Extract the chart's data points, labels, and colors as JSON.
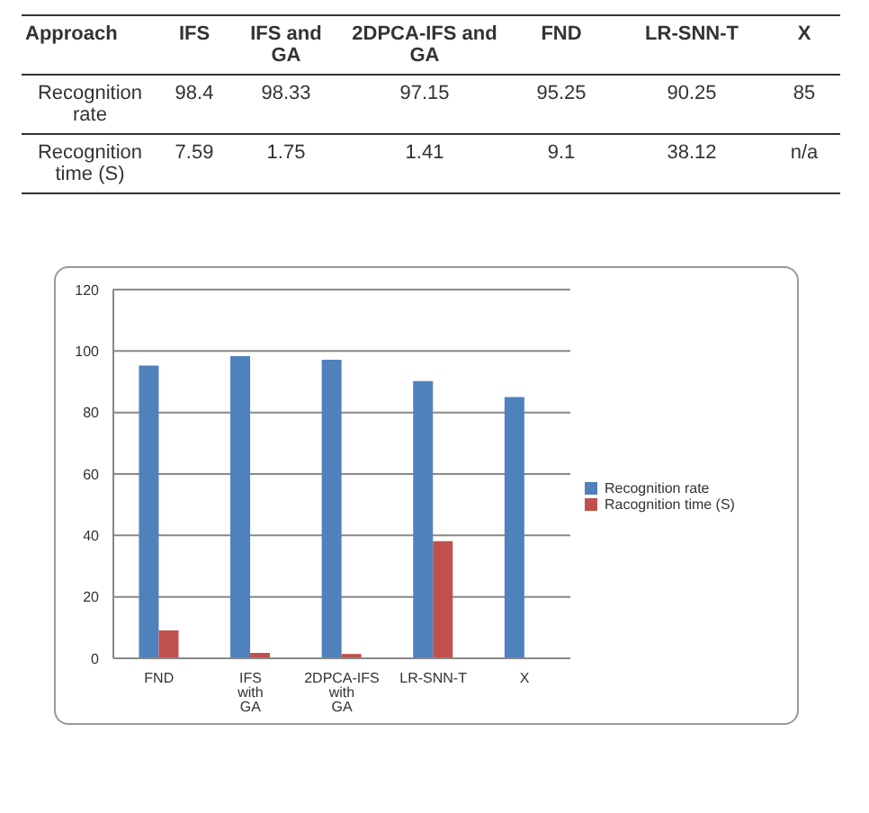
{
  "chart_data": [
    {
      "type": "other",
      "ylabel": "Approach",
      "categories": [
        "IFS",
        "IFS and GA",
        "2DPCA-IFS and GA",
        "FND",
        "LR-SNN-T",
        "X"
      ],
      "y_categories": [
        "Recognition rate",
        "Recognition time (S)"
      ],
      "cell_labels": [
        [
          "98.4",
          "98.33",
          "97.15",
          "95.25",
          "90.25",
          "85"
        ],
        [
          "7.59",
          "1.75",
          "1.41",
          "9.1",
          "38.12",
          "n/a"
        ]
      ]
    },
    {
      "type": "bar",
      "categories": [
        "FND",
        "IFS with GA",
        "2DPCA-IFS with GA",
        "LR-SNN-T",
        "X"
      ],
      "series": [
        {
          "name": "Recognition rate",
          "color": "#4f81bd",
          "values": [
            95.25,
            98.33,
            97.15,
            90.25,
            85
          ]
        },
        {
          "name": "Racognition time (S)",
          "color": "#c0504d",
          "values": [
            9.1,
            1.75,
            1.41,
            38.12,
            null
          ]
        }
      ],
      "ylim": [
        0,
        120
      ],
      "yticks": [
        0,
        20,
        40,
        60,
        80,
        100,
        120
      ],
      "grid": "y",
      "legend": "right"
    }
  ]
}
